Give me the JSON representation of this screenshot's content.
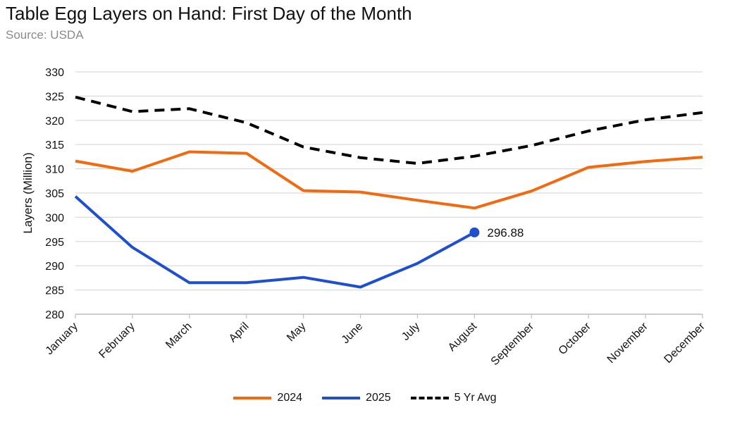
{
  "chart_data": {
    "type": "line",
    "title": "Table Egg Layers on Hand: First Day of the Month",
    "subtitle": "Source: USDA",
    "ylabel": "Layers (Million)",
    "xlabel": "",
    "ylim": [
      280,
      330
    ],
    "yticks": [
      280,
      285,
      290,
      295,
      300,
      305,
      310,
      315,
      320,
      325,
      330
    ],
    "categories": [
      "January",
      "February",
      "March",
      "April",
      "May",
      "June",
      "July",
      "August",
      "September",
      "October",
      "November",
      "December"
    ],
    "grid": "horizontal",
    "legend_position": "bottom",
    "series": [
      {
        "name": "2024",
        "color": "#f26a10",
        "style": "solid",
        "values": [
          311.6,
          309.5,
          313.5,
          313.2,
          305.5,
          305.2,
          303.5,
          301.9,
          305.4,
          310.3,
          311.5,
          312.4
        ]
      },
      {
        "name": "2025",
        "color": "#1f4fd1",
        "style": "solid",
        "values": [
          304.3,
          293.8,
          286.5,
          286.5,
          287.6,
          285.6,
          290.5,
          296.88,
          null,
          null,
          null,
          null
        ]
      },
      {
        "name": "5 Yr Avg",
        "color": "#000000",
        "style": "dashed",
        "values": [
          324.8,
          321.8,
          322.4,
          319.5,
          314.5,
          312.3,
          311.1,
          312.6,
          314.8,
          317.8,
          320.1,
          321.6
        ]
      }
    ],
    "annotations": [
      {
        "series": "2025",
        "category": "August",
        "label": "296.88"
      }
    ]
  }
}
